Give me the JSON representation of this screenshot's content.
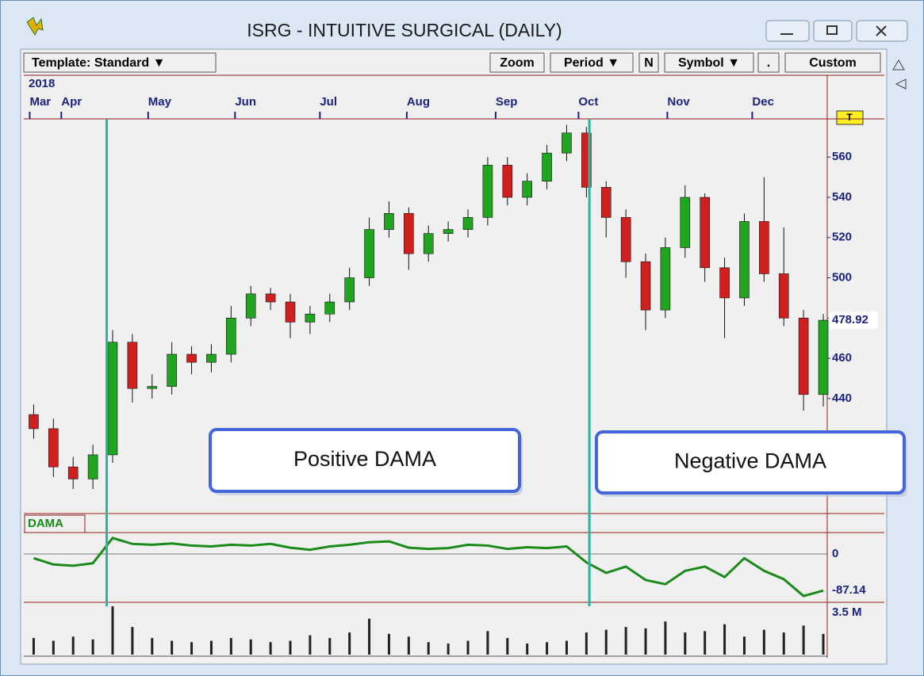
{
  "window": {
    "title": "ISRG - INTUITIVE SURGICAL (DAILY)",
    "toolbar_left": "Template: Standard ▼",
    "toolbar_right": [
      "Zoom",
      "Period ▼",
      "N",
      "Symbol ▼",
      ".",
      "Custom"
    ],
    "price_tag": "T"
  },
  "chart_data": {
    "type": "candlestick",
    "year": "2018",
    "x": [
      11.5,
      12.5,
      13.5,
      14.5,
      15.5,
      16.5,
      17.5,
      18.5,
      19.5,
      20.5,
      21.5,
      22.5,
      23.5,
      24.5,
      25.5,
      26.5,
      27.5,
      28.5,
      29.5,
      30.5,
      31.5,
      32.5,
      33.5,
      34.5,
      35.5,
      36.5,
      37.5,
      38.5,
      39.5,
      40.5,
      41.5,
      42.5,
      43.5,
      44.5,
      45.5,
      46.5,
      47.5,
      48.5,
      49.5,
      50.5,
      51.5
    ],
    "open": [
      432,
      425,
      406,
      400,
      412,
      468,
      445,
      446,
      462,
      458,
      462,
      480,
      492,
      488,
      478,
      482,
      488,
      500,
      524,
      532,
      512,
      522,
      524,
      530,
      556,
      540,
      548,
      562,
      572,
      545,
      530,
      508,
      484,
      515,
      540,
      505,
      490,
      528,
      502,
      480,
      442
    ],
    "high": [
      437,
      430,
      411,
      417,
      474,
      472,
      452,
      468,
      466,
      467,
      486,
      496,
      495,
      492,
      486,
      492,
      505,
      530,
      538,
      535,
      526,
      528,
      534,
      560,
      560,
      552,
      566,
      576,
      575,
      548,
      534,
      512,
      520,
      546,
      542,
      510,
      532,
      550,
      525,
      484,
      482
    ],
    "low": [
      420,
      401,
      395,
      395,
      408,
      438,
      440,
      442,
      452,
      453,
      458,
      476,
      484,
      470,
      472,
      478,
      484,
      496,
      520,
      504,
      508,
      518,
      520,
      526,
      536,
      536,
      544,
      558,
      540,
      520,
      500,
      474,
      480,
      510,
      498,
      470,
      486,
      498,
      476,
      434,
      436
    ],
    "close": [
      425,
      406,
      400,
      412,
      468,
      445,
      446,
      462,
      458,
      462,
      480,
      492,
      488,
      478,
      482,
      488,
      500,
      524,
      532,
      512,
      522,
      524,
      530,
      556,
      540,
      548,
      562,
      572,
      545,
      530,
      508,
      484,
      515,
      540,
      505,
      490,
      528,
      502,
      480,
      442,
      478.92
    ],
    "xlim": [
      11,
      51.7
    ],
    "xticks": [
      {
        "value": 11.3,
        "label": "Mar"
      },
      {
        "value": 12.9,
        "label": "Apr"
      },
      {
        "value": 17.3,
        "label": "May"
      },
      {
        "value": 21.7,
        "label": "Jun"
      },
      {
        "value": 26,
        "label": "Jul"
      },
      {
        "value": 30.4,
        "label": "Aug"
      },
      {
        "value": 34.9,
        "label": "Sep"
      },
      {
        "value": 39.1,
        "label": "Oct"
      },
      {
        "value": 43.6,
        "label": "Nov"
      },
      {
        "value": 47.9,
        "label": "Dec"
      }
    ],
    "ylim": [
      384,
      579
    ],
    "yticks": [
      440,
      460,
      480,
      500,
      520,
      540,
      560
    ],
    "last_price": 478.92,
    "up_color": "#1fa51f",
    "down_color": "#d01f1f",
    "signals": [
      15.2,
      39.65
    ],
    "signal_color": "#2bb3a0",
    "annotations": [
      "Positive DAMA",
      "Negative DAMA"
    ],
    "indicator": {
      "name": "DAMA",
      "color": "#1a8a1a",
      "values": [
        -10,
        -25,
        -28,
        -22,
        38,
        24,
        22,
        25,
        20,
        18,
        22,
        20,
        24,
        15,
        10,
        18,
        22,
        28,
        30,
        15,
        12,
        14,
        22,
        20,
        12,
        16,
        14,
        18,
        -20,
        -45,
        -30,
        -62,
        -72,
        -40,
        -30,
        -55,
        -10,
        -40,
        -60,
        -100,
        -87.14
      ],
      "ylim": [
        -115,
        51
      ],
      "yticks": [
        0
      ],
      "last_value": -87.14
    },
    "volume": {
      "values": [
        1.2,
        1.0,
        1.3,
        1.1,
        3.5,
        2.0,
        1.2,
        1.0,
        0.9,
        1.0,
        1.2,
        1.1,
        0.9,
        1.0,
        1.4,
        1.2,
        1.6,
        2.6,
        1.5,
        1.3,
        0.9,
        0.8,
        1.0,
        1.7,
        1.2,
        0.8,
        0.9,
        1.0,
        1.6,
        1.8,
        2.0,
        1.9,
        2.4,
        1.6,
        1.7,
        2.2,
        1.3,
        1.8,
        1.6,
        2.1,
        1.5
      ],
      "ylim": [
        0,
        3.5
      ],
      "yticks": [
        {
          "value": 3.5,
          "label": "3.5 M"
        }
      ],
      "color": "#222"
    }
  }
}
